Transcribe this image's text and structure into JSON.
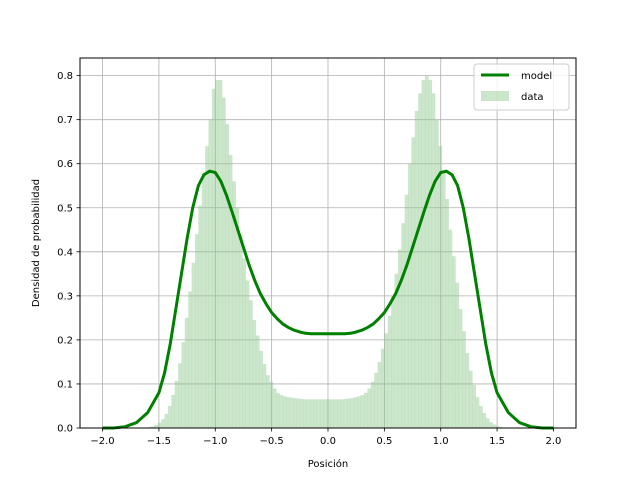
{
  "chart_data": {
    "type": "bar",
    "title": "",
    "xlabel": "Posición",
    "ylabel": "Densidad de probabilidad",
    "xlim": [
      -2.2,
      2.2
    ],
    "ylim": [
      0.0,
      0.84
    ],
    "xticks": [
      "-2.0",
      "-1.5",
      "-1.0",
      "-0.5",
      "0.0",
      "0.5",
      "1.0",
      "1.5",
      "2.0"
    ],
    "yticks": [
      "0.0",
      "0.1",
      "0.2",
      "0.3",
      "0.4",
      "0.5",
      "0.6",
      "0.7",
      "0.8"
    ],
    "grid": true,
    "legend_position": "top-right",
    "colors": {
      "model": "#008000",
      "data": "#8fc88f",
      "grid": "#b0b0b0"
    },
    "series": [
      {
        "name": "model",
        "type": "line",
        "x": [
          -2.0,
          -1.9,
          -1.8,
          -1.7,
          -1.6,
          -1.5,
          -1.45,
          -1.4,
          -1.35,
          -1.3,
          -1.25,
          -1.2,
          -1.15,
          -1.1,
          -1.05,
          -1.0,
          -0.95,
          -0.9,
          -0.85,
          -0.8,
          -0.75,
          -0.7,
          -0.65,
          -0.6,
          -0.55,
          -0.5,
          -0.45,
          -0.4,
          -0.35,
          -0.3,
          -0.25,
          -0.2,
          -0.15,
          -0.1,
          -0.05,
          0.0,
          0.05,
          0.1,
          0.15,
          0.2,
          0.25,
          0.3,
          0.35,
          0.4,
          0.45,
          0.5,
          0.55,
          0.6,
          0.65,
          0.7,
          0.75,
          0.8,
          0.85,
          0.9,
          0.95,
          1.0,
          1.05,
          1.1,
          1.15,
          1.2,
          1.25,
          1.3,
          1.35,
          1.4,
          1.45,
          1.5,
          1.6,
          1.7,
          1.8,
          1.9,
          2.0
        ],
        "y": [
          0.0,
          0.0,
          0.003,
          0.012,
          0.035,
          0.08,
          0.125,
          0.19,
          0.27,
          0.35,
          0.43,
          0.5,
          0.55,
          0.575,
          0.583,
          0.58,
          0.56,
          0.528,
          0.49,
          0.45,
          0.41,
          0.37,
          0.335,
          0.305,
          0.282,
          0.262,
          0.248,
          0.236,
          0.228,
          0.222,
          0.218,
          0.215,
          0.214,
          0.214,
          0.214,
          0.214,
          0.214,
          0.214,
          0.214,
          0.215,
          0.218,
          0.222,
          0.228,
          0.236,
          0.248,
          0.262,
          0.282,
          0.305,
          0.335,
          0.37,
          0.41,
          0.45,
          0.49,
          0.528,
          0.56,
          0.58,
          0.583,
          0.575,
          0.55,
          0.5,
          0.43,
          0.35,
          0.27,
          0.19,
          0.125,
          0.08,
          0.035,
          0.012,
          0.003,
          0.0,
          0.0
        ]
      },
      {
        "name": "data",
        "type": "histogram",
        "bin_width": 0.03,
        "x": [
          -1.6,
          -1.57,
          -1.54,
          -1.51,
          -1.48,
          -1.45,
          -1.42,
          -1.39,
          -1.36,
          -1.33,
          -1.3,
          -1.27,
          -1.24,
          -1.21,
          -1.18,
          -1.15,
          -1.12,
          -1.09,
          -1.06,
          -1.03,
          -1.0,
          -0.97,
          -0.94,
          -0.91,
          -0.88,
          -0.85,
          -0.82,
          -0.79,
          -0.76,
          -0.73,
          -0.7,
          -0.67,
          -0.64,
          -0.61,
          -0.58,
          -0.55,
          -0.52,
          -0.49,
          -0.46,
          -0.43,
          -0.4,
          -0.37,
          -0.34,
          -0.31,
          -0.28,
          -0.25,
          -0.22,
          -0.19,
          -0.16,
          -0.13,
          -0.1,
          -0.07,
          -0.04,
          -0.01,
          0.02,
          0.05,
          0.08,
          0.11,
          0.14,
          0.17,
          0.2,
          0.23,
          0.26,
          0.29,
          0.32,
          0.35,
          0.38,
          0.41,
          0.44,
          0.47,
          0.5,
          0.53,
          0.56,
          0.59,
          0.62,
          0.65,
          0.68,
          0.71,
          0.74,
          0.77,
          0.8,
          0.83,
          0.86,
          0.89,
          0.92,
          0.95,
          0.98,
          1.01,
          1.04,
          1.07,
          1.1,
          1.13,
          1.16,
          1.19,
          1.22,
          1.25,
          1.28,
          1.31,
          1.34,
          1.37,
          1.4,
          1.43,
          1.46,
          1.49,
          1.52,
          1.55,
          1.58
        ],
        "y": [
          0.002,
          0.004,
          0.007,
          0.012,
          0.02,
          0.032,
          0.05,
          0.075,
          0.107,
          0.147,
          0.195,
          0.25,
          0.31,
          0.375,
          0.44,
          0.505,
          0.58,
          0.64,
          0.7,
          0.77,
          0.79,
          0.79,
          0.75,
          0.69,
          0.62,
          0.56,
          0.5,
          0.44,
          0.385,
          0.335,
          0.29,
          0.245,
          0.21,
          0.175,
          0.145,
          0.12,
          0.105,
          0.09,
          0.08,
          0.075,
          0.072,
          0.07,
          0.069,
          0.068,
          0.067,
          0.066,
          0.065,
          0.065,
          0.065,
          0.065,
          0.065,
          0.065,
          0.065,
          0.065,
          0.065,
          0.065,
          0.065,
          0.065,
          0.066,
          0.067,
          0.068,
          0.07,
          0.072,
          0.075,
          0.08,
          0.09,
          0.105,
          0.125,
          0.15,
          0.18,
          0.215,
          0.255,
          0.3,
          0.35,
          0.405,
          0.465,
          0.53,
          0.6,
          0.66,
          0.72,
          0.76,
          0.79,
          0.8,
          0.79,
          0.76,
          0.7,
          0.64,
          0.58,
          0.52,
          0.45,
          0.39,
          0.33,
          0.27,
          0.22,
          0.17,
          0.13,
          0.098,
          0.07,
          0.05,
          0.034,
          0.022,
          0.013,
          0.008,
          0.004,
          0.002,
          0.001,
          0.0
        ]
      }
    ]
  }
}
